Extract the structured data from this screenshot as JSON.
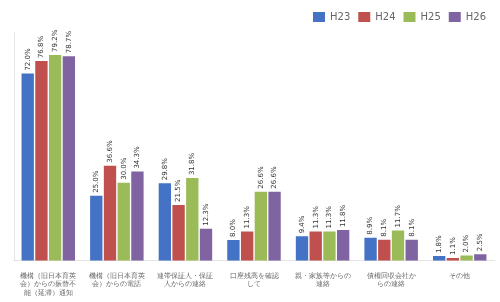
{
  "chart_data": {
    "type": "bar",
    "categories": [
      "機構（旧日本育英\n会）からの振替不\n能（延滞）通知",
      "機構（旧日本育英\n会）からの電話",
      "連帯保証人・保証\n人からの連絡",
      "口座残高を確認\nして",
      "親・家族等からの\n連絡",
      "債権回収会社か\nらの連絡",
      "その他"
    ],
    "series": [
      {
        "name": "H23",
        "color": "#4472C4",
        "values": [
          72.0,
          25.0,
          29.8,
          8.0,
          9.4,
          8.9,
          1.8
        ],
        "value_labels": [
          "72.0%",
          "25.0%",
          "29.8%",
          "8.0%",
          "9.4%",
          "8.9%",
          "1.8%"
        ]
      },
      {
        "name": "H24",
        "color": "#C0504D",
        "values": [
          76.8,
          36.6,
          21.5,
          11.3,
          11.3,
          8.1,
          1.1
        ],
        "value_labels": [
          "76.8%",
          "36.6%",
          "21.5%",
          "11.3%",
          "11.3%",
          "8.1%",
          "1.1%"
        ]
      },
      {
        "name": "H25",
        "color": "#9BBB59",
        "values": [
          79.2,
          30.0,
          31.8,
          26.6,
          11.3,
          11.7,
          2.0
        ],
        "value_labels": [
          "79.2%",
          "30.0%",
          "31.8%",
          "26.6%",
          "11.3%",
          "11.7%",
          "2.0%"
        ]
      },
      {
        "name": "H26",
        "color": "#8064A2",
        "values": [
          78.7,
          34.3,
          12.3,
          26.6,
          11.8,
          8.1,
          2.5
        ],
        "value_labels": [
          "78.7%",
          "34.3%",
          "12.3%",
          "26.6%",
          "11.8%",
          "8.1%",
          "2.5%"
        ]
      }
    ],
    "ylim": [
      0,
      88
    ],
    "grid": false,
    "legend": "upper right",
    "data_labels": true,
    "tick_labels": "x"
  }
}
